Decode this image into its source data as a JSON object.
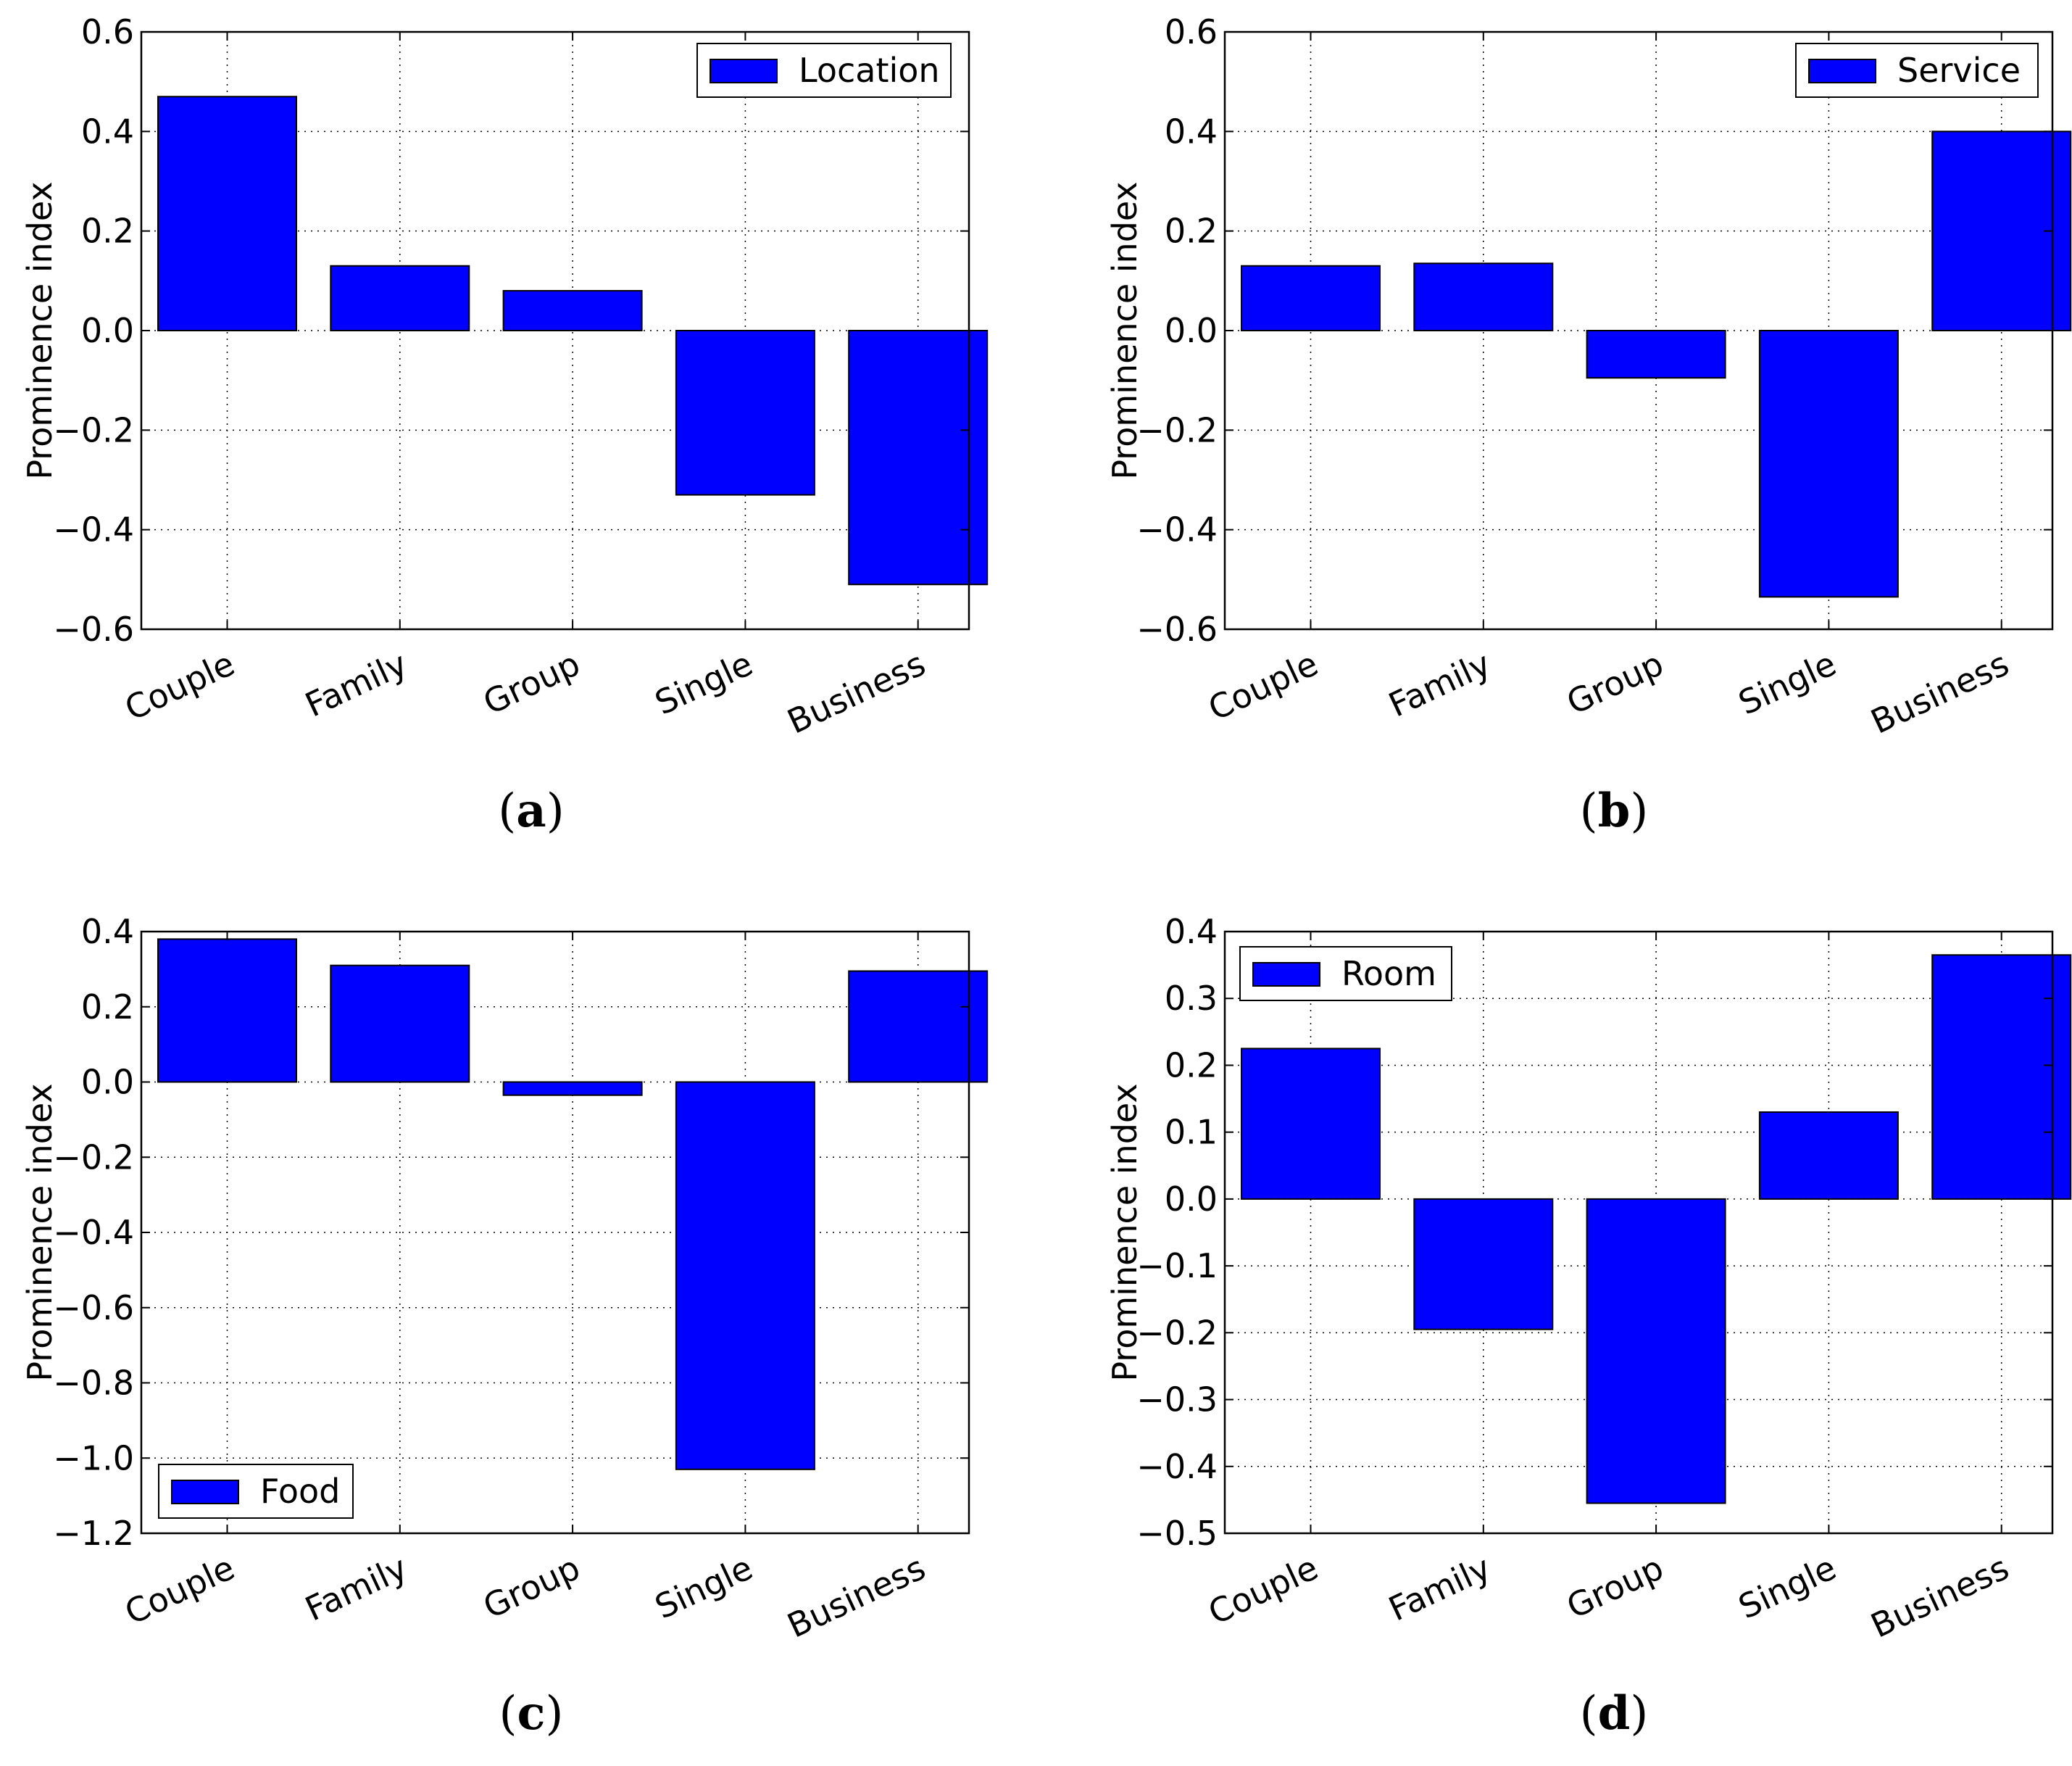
{
  "figure": {
    "panels": [
      {
        "caption_open": "(",
        "caption_letter": "a",
        "caption_close": ")"
      },
      {
        "caption_open": "(",
        "caption_letter": "b",
        "caption_close": ")"
      },
      {
        "caption_open": "(",
        "caption_letter": "c",
        "caption_close": ")"
      },
      {
        "caption_open": "(",
        "caption_letter": "d",
        "caption_close": ")"
      }
    ]
  },
  "chart_data": [
    {
      "type": "bar",
      "categories": [
        "Couple",
        "Family",
        "Group",
        "Single",
        "Business"
      ],
      "series": [
        {
          "name": "Location",
          "values": [
            0.47,
            0.13,
            0.08,
            -0.33,
            -0.51
          ]
        }
      ],
      "ylabel": "Prominence index",
      "ylim": [
        -0.6,
        0.6
      ],
      "yticks": [
        -0.6,
        -0.4,
        -0.2,
        0.0,
        0.2,
        0.4,
        0.6
      ],
      "ytick_labels": [
        "−0.6",
        "−0.4",
        "−0.2",
        "0.0",
        "0.2",
        "0.4",
        "0.6"
      ],
      "grid": true,
      "legend": "top-right",
      "bar_color": "#0000ff"
    },
    {
      "type": "bar",
      "categories": [
        "Couple",
        "Family",
        "Group",
        "Single",
        "Business"
      ],
      "series": [
        {
          "name": "Service",
          "values": [
            0.13,
            0.135,
            -0.095,
            -0.535,
            0.4
          ]
        }
      ],
      "ylabel": "Prominence index",
      "ylim": [
        -0.6,
        0.6
      ],
      "yticks": [
        -0.6,
        -0.4,
        -0.2,
        0.0,
        0.2,
        0.4,
        0.6
      ],
      "ytick_labels": [
        "−0.6",
        "−0.4",
        "−0.2",
        "0.0",
        "0.2",
        "0.4",
        "0.6"
      ],
      "grid": true,
      "legend": "top-right",
      "bar_color": "#0000ff"
    },
    {
      "type": "bar",
      "categories": [
        "Couple",
        "Family",
        "Group",
        "Single",
        "Business"
      ],
      "series": [
        {
          "name": "Food",
          "values": [
            0.38,
            0.31,
            -0.035,
            -1.03,
            0.295
          ]
        }
      ],
      "ylabel": "Prominence index",
      "ylim": [
        -1.2,
        0.4
      ],
      "yticks": [
        -1.2,
        -1.0,
        -0.8,
        -0.6,
        -0.4,
        -0.2,
        0.0,
        0.2,
        0.4
      ],
      "ytick_labels": [
        "−1.2",
        "−1.0",
        "−0.8",
        "−0.6",
        "−0.4",
        "−0.2",
        "0.0",
        "0.2",
        "0.4"
      ],
      "grid": true,
      "legend": "bottom-left",
      "bar_color": "#0000ff"
    },
    {
      "type": "bar",
      "categories": [
        "Couple",
        "Family",
        "Group",
        "Single",
        "Business"
      ],
      "series": [
        {
          "name": "Room",
          "values": [
            0.225,
            -0.195,
            -0.455,
            0.13,
            0.365
          ]
        }
      ],
      "ylabel": "Prominence index",
      "ylim": [
        -0.5,
        0.4
      ],
      "yticks": [
        -0.5,
        -0.4,
        -0.3,
        -0.2,
        -0.1,
        0.0,
        0.1,
        0.2,
        0.3,
        0.4
      ],
      "ytick_labels": [
        "−0.5",
        "−0.4",
        "−0.3",
        "−0.2",
        "−0.1",
        "0.0",
        "0.1",
        "0.2",
        "0.3",
        "0.4"
      ],
      "grid": true,
      "legend": "top-left",
      "bar_color": "#0000ff"
    }
  ]
}
